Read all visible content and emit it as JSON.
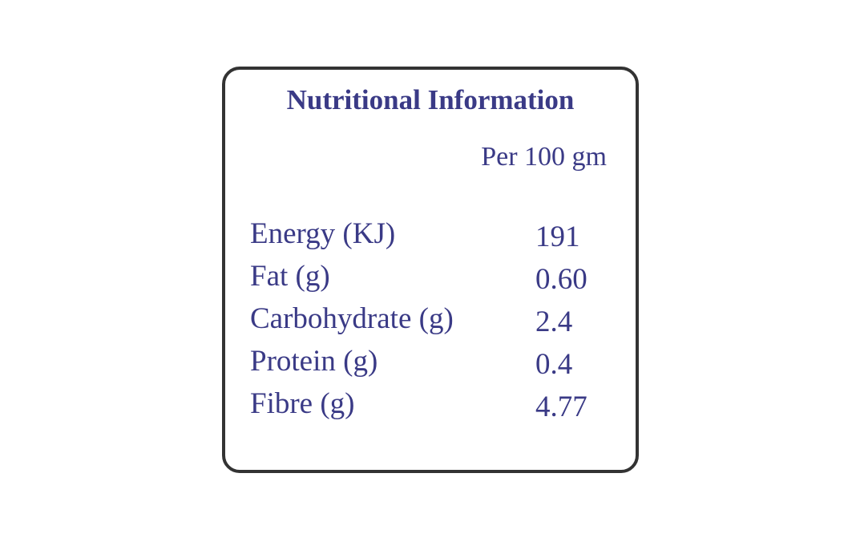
{
  "header": {
    "title": "Nutritional Information",
    "subtitle": "Per 100 gm"
  },
  "table": {
    "rows": [
      [
        "Energy (KJ)",
        "191"
      ],
      [
        "Fat (g)",
        "0.60"
      ],
      [
        "Carbohydrate (g)",
        "2.4"
      ],
      [
        "Protein (g)",
        "0.4"
      ],
      [
        "Fibre (g)",
        "4.77"
      ]
    ]
  }
}
